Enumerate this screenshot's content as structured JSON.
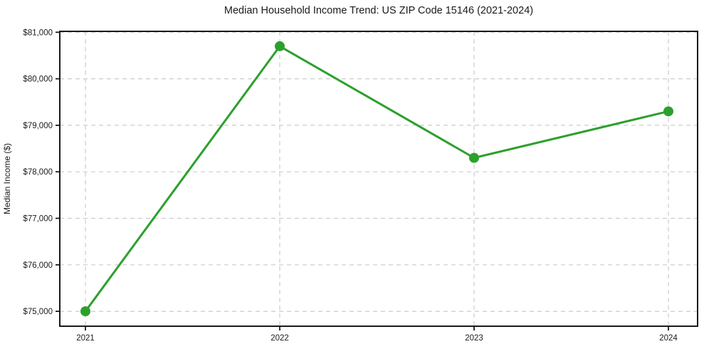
{
  "chart_data": {
    "type": "line",
    "title": "Median Household Income Trend: US ZIP Code 15146 (2021-2024)",
    "xlabel": "",
    "ylabel": "Median Income ($)",
    "categories": [
      "2021",
      "2022",
      "2023",
      "2024"
    ],
    "series": [
      {
        "name": "Median Household Income",
        "values": [
          75000,
          80700,
          78300,
          79300
        ]
      }
    ],
    "y_ticks": [
      75000,
      76000,
      77000,
      78000,
      79000,
      80000,
      81000
    ],
    "y_tick_labels": [
      "$75,000",
      "$76,000",
      "$77,000",
      "$78,000",
      "$79,000",
      "$80,000",
      "$81,000"
    ],
    "ylim": [
      74680,
      81020
    ],
    "grid": "dashed",
    "legend": "none",
    "colors": {
      "line": "#2ca02c",
      "marker": "#2ca02c",
      "grid": "#cccccc",
      "axis": "#1a1a1a",
      "text": "#1a1a1a",
      "background": "#ffffff"
    }
  }
}
